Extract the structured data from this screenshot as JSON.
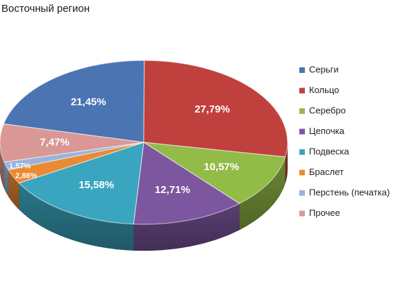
{
  "chart_data": {
    "type": "pie",
    "title": "Восточный регион",
    "legend_position": "right",
    "slices": [
      {
        "name": "Серьги",
        "value": 21.45,
        "label": "21,45%",
        "color": "#4a74b2"
      },
      {
        "name": "Кольцо",
        "value": 27.79,
        "label": "27,79%",
        "color": "#c0403d"
      },
      {
        "name": "Серебро",
        "value": 10.57,
        "label": "10,57%",
        "color": "#93bb47"
      },
      {
        "name": "Цепочка",
        "value": 12.71,
        "label": "12,71%",
        "color": "#7c569f"
      },
      {
        "name": "Подвеска",
        "value": 15.58,
        "label": "15,58%",
        "color": "#3aa5bf"
      },
      {
        "name": "Браслет",
        "value": 2.86,
        "label": "2,86%",
        "color": "#ea8a34"
      },
      {
        "name": "Перстень (печатка)",
        "value": 1.57,
        "label": "1,57%",
        "color": "#98b4dc"
      },
      {
        "name": "Прочее",
        "value": 7.47,
        "label": "7,47%",
        "color": "#d99896"
      }
    ]
  }
}
